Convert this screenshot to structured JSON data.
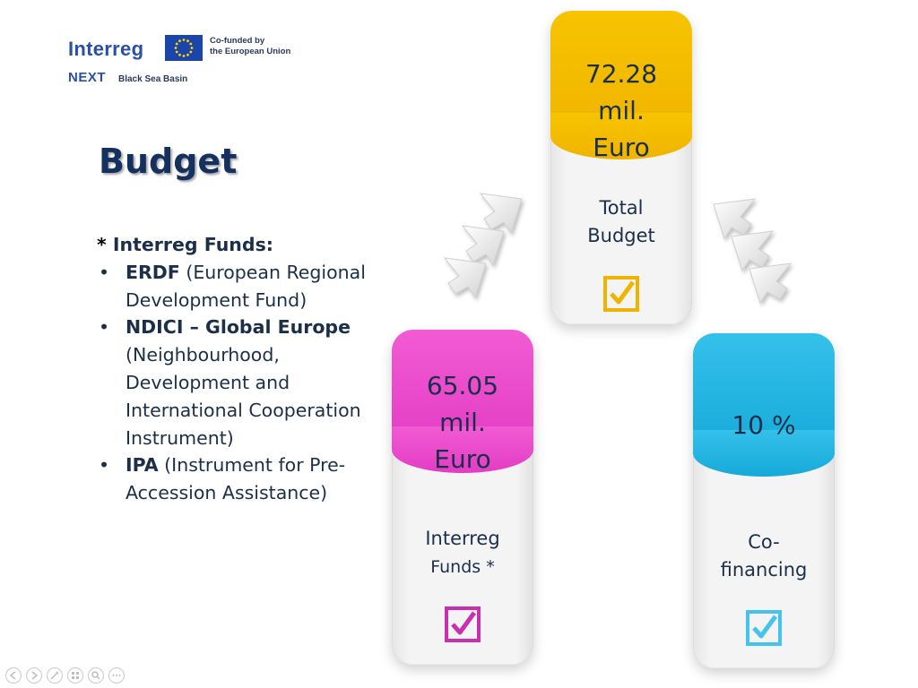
{
  "logo": {
    "name": "Interreg",
    "cofunded": "Co-funded by\nthe European Union",
    "program": "NEXT",
    "region": "Black Sea Basin"
  },
  "slide": {
    "title": "Budget",
    "funds_heading_star": "*",
    "funds_heading": " Interreg Funds:",
    "funds": [
      {
        "bold": "ERDF",
        "text": " (European Regional Development Fund)"
      },
      {
        "bold": "NDICI – Global Europe",
        "text": " (Neighbourhood, Development and International Cooperation Instrument)"
      },
      {
        "bold": "IPA",
        "text": " (Instrument for Pre-Accession Assistance)"
      }
    ]
  },
  "cards": {
    "total": {
      "value": "72.28\nmil.\nEuro",
      "label": "Total\nBudget",
      "color": "#f7c400",
      "check_color": "#f0b400"
    },
    "interreg": {
      "value": "65.05\nmil.\nEuro",
      "label": "Interreg",
      "label_sub": "Funds *",
      "color": "#e23cc4",
      "check_color": "#c930b0"
    },
    "cofinancing": {
      "value": "10 %",
      "label": "Co-\nfinancing",
      "color": "#16a9d9",
      "check_color": "#46c2ef"
    }
  },
  "icons": {
    "check": "checkbox-checked-icon",
    "arrow": "chevron-arrow-icon"
  },
  "player_controls": [
    "previous",
    "next",
    "pen",
    "slides",
    "zoom",
    "more"
  ]
}
